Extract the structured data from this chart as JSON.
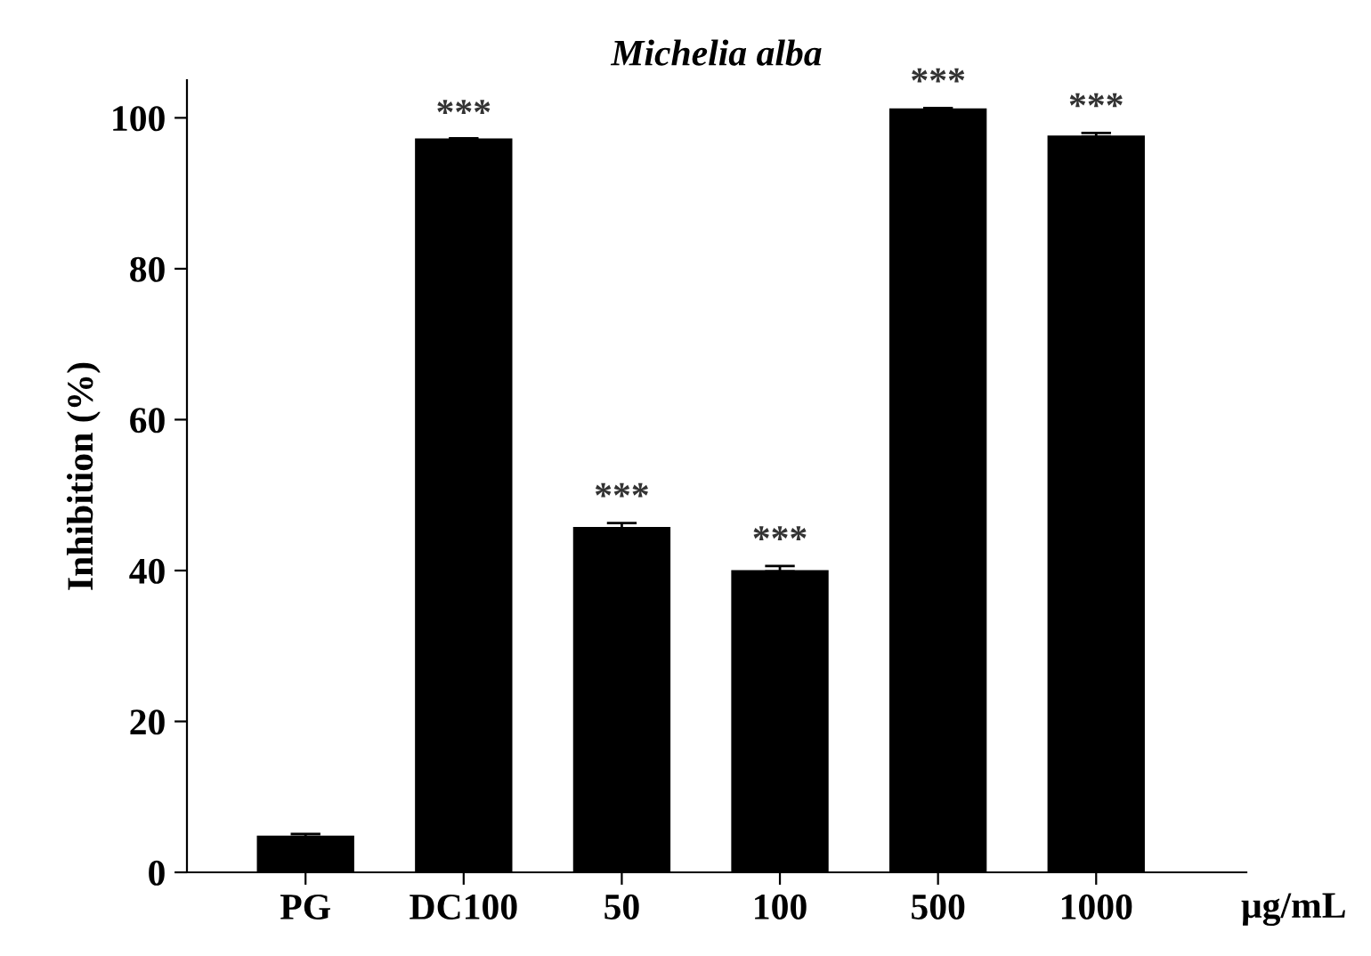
{
  "chart_data": {
    "type": "bar",
    "title": "Michelia alba",
    "ylabel": "Inhibition (%)",
    "categories": [
      "PG",
      "DC100",
      "50",
      "100",
      "500",
      "1000"
    ],
    "values": [
      4.7,
      97.1,
      45.6,
      39.9,
      101.1,
      97.5
    ],
    "errors": [
      0.4,
      0.2,
      0.7,
      0.7,
      0.2,
      0.5
    ],
    "color": "#000000",
    "ylim": [
      0,
      105
    ],
    "yticks": [
      0,
      20,
      40,
      60,
      80,
      100
    ],
    "grid": false,
    "annotations": [
      {
        "text": "***",
        "x": "DC100",
        "y": 97.1
      },
      {
        "text": "***",
        "x": "50",
        "y": 46.3
      },
      {
        "text": "***",
        "x": "100",
        "y": 40.6
      },
      {
        "text": "***",
        "x": "500",
        "y": 101.3
      },
      {
        "text": "***",
        "x": "1000",
        "y": 98.0
      },
      "μg/mL"
    ]
  }
}
